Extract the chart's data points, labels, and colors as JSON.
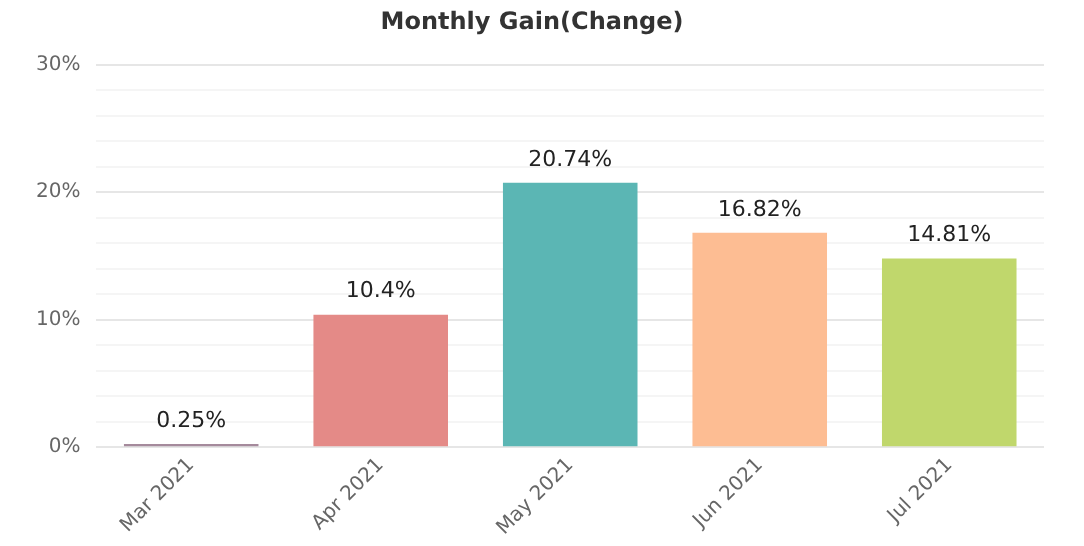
{
  "chart_data": {
    "type": "bar",
    "title": "Monthly Gain(Change)",
    "categories": [
      "Mar 2021",
      "Apr 2021",
      "May 2021",
      "Jun 2021",
      "Jul 2021"
    ],
    "values": [
      0.25,
      10.4,
      20.74,
      16.82,
      14.81
    ],
    "colors": [
      "#a58a9c",
      "#e48a87",
      "#5bb6b4",
      "#fdbd93",
      "#c0d76c"
    ],
    "value_labels": [
      "0.25%",
      "10.4%",
      "20.74%",
      "16.82%",
      "14.81%"
    ],
    "ylim": [
      0,
      30
    ],
    "yticks": [
      {
        "value": 0,
        "label": "0%"
      },
      {
        "value": 2,
        "label": null
      },
      {
        "value": 4,
        "label": null
      },
      {
        "value": 6,
        "label": null
      },
      {
        "value": 8,
        "label": null
      },
      {
        "value": 10,
        "label": "10%"
      },
      {
        "value": 12,
        "label": null
      },
      {
        "value": 14,
        "label": null
      },
      {
        "value": 16,
        "label": null
      },
      {
        "value": 18,
        "label": null
      },
      {
        "value": 20,
        "label": "20%"
      },
      {
        "value": 22,
        "label": null
      },
      {
        "value": 24,
        "label": null
      },
      {
        "value": 26,
        "label": null
      },
      {
        "value": 28,
        "label": null
      },
      {
        "value": 30,
        "label": "30%"
      }
    ],
    "grid": "y",
    "legend": false
  }
}
